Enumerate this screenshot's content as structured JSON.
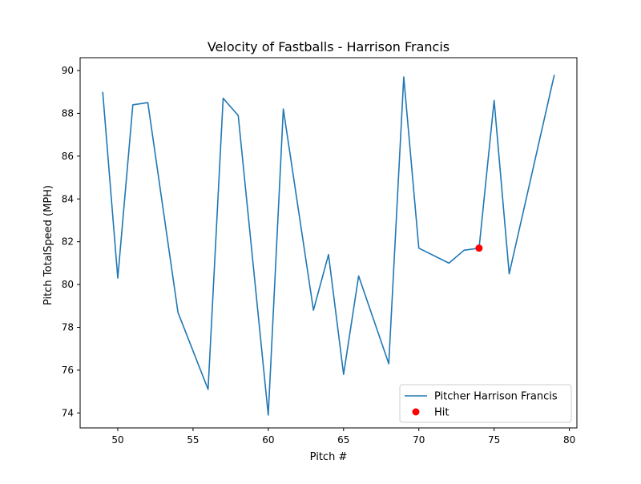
{
  "chart_data": {
    "type": "line",
    "title": "Velocity of Fastballs - Harrison Francis",
    "xlabel": "Pitch #",
    "ylabel": "Pitch TotalSpeed (MPH)",
    "xlim": [
      47.5,
      80.5
    ],
    "ylim": [
      73.3,
      90.6
    ],
    "xticks": [
      50,
      55,
      60,
      65,
      70,
      75,
      80
    ],
    "yticks": [
      74,
      76,
      78,
      80,
      82,
      84,
      86,
      88,
      90
    ],
    "grid": false,
    "legend_position": "bottom-right",
    "series": [
      {
        "name": "Pitcher Harrison Francis",
        "color": "#1f77b4",
        "x": [
          49,
          50,
          51,
          52,
          54,
          56,
          57,
          58,
          60,
          61,
          63,
          64,
          65,
          66,
          68,
          69,
          70,
          72,
          73,
          74,
          75,
          76,
          79
        ],
        "y": [
          89.0,
          80.3,
          88.4,
          88.5,
          78.7,
          75.1,
          88.7,
          87.9,
          73.9,
          88.2,
          78.8,
          81.4,
          75.8,
          80.4,
          76.3,
          89.7,
          81.7,
          81.0,
          81.6,
          81.7,
          88.6,
          80.5,
          89.8
        ]
      }
    ],
    "markers": [
      {
        "name": "Hit",
        "color": "#ff0000",
        "x": 74,
        "y": 81.7
      }
    ]
  }
}
